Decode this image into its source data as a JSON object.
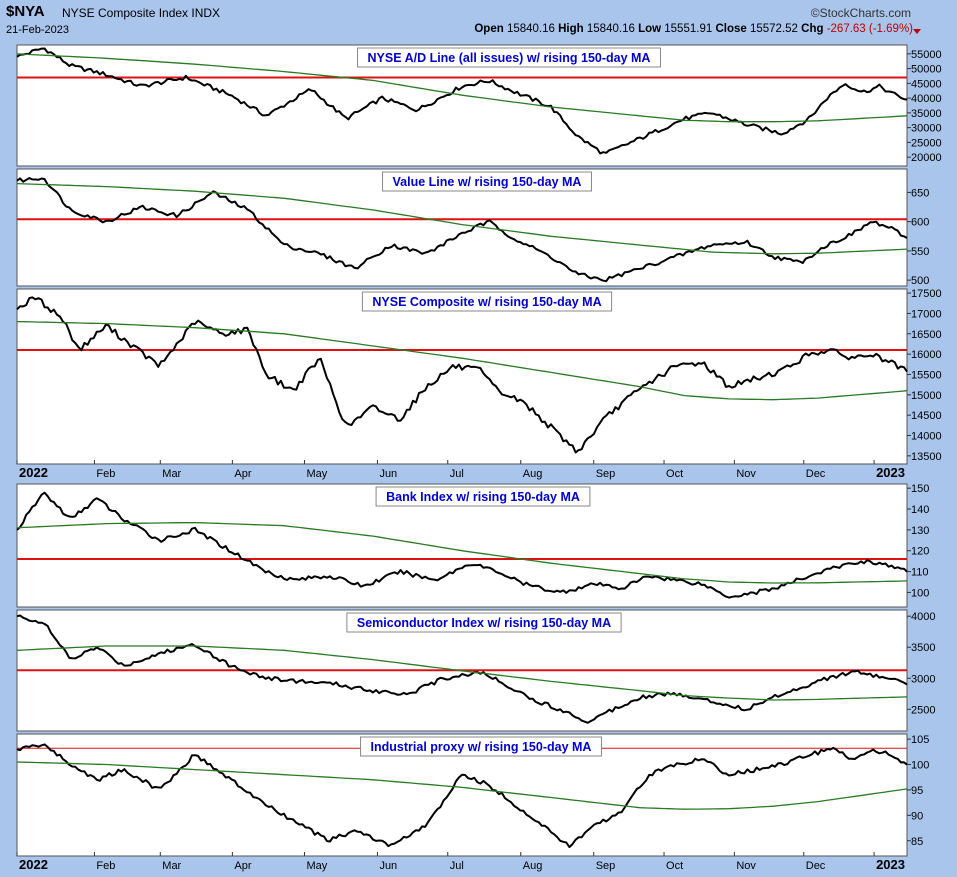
{
  "header": {
    "symbol": "$NYA",
    "name": "NYSE Composite Index INDX",
    "date": "21-Feb-2023",
    "brand": "StockCharts.com",
    "open_label": "Open",
    "open": "15840.16",
    "high_label": "High",
    "high": "15840.16",
    "low_label": "Low",
    "low": "15551.91",
    "close_label": "Close",
    "close": "15572.52",
    "chg_label": "Chg",
    "chg": "-267.63 (-1.69%)"
  },
  "colors": {
    "background": "#a9c5ec",
    "price": "#000000",
    "ma": "#2a7a24",
    "reference": "#e01010",
    "title": "#0000cc"
  },
  "chart_data": [
    {
      "type": "line",
      "title": "NYSE A/D Line (all issues) w/ rising 150-day MA",
      "ylim": [
        17000,
        58000
      ],
      "yticks": [
        20000,
        25000,
        30000,
        35000,
        40000,
        45000,
        50000,
        55000
      ],
      "ytick_labels": [
        "20000",
        "25000",
        "30000",
        "35000",
        "40000",
        "45000",
        "50000",
        "55000"
      ],
      "reference_line": 47000,
      "series": [
        {
          "role": "price",
          "x": [
            0,
            0.03,
            0.06,
            0.1,
            0.14,
            0.19,
            0.24,
            0.28,
            0.33,
            0.37,
            0.41,
            0.45,
            0.5,
            0.53,
            0.56,
            0.6,
            0.63,
            0.66,
            0.69,
            0.72,
            0.75,
            0.78,
            0.82,
            0.86,
            0.89,
            0.91,
            0.93,
            0.95,
            0.97,
            0.98,
            1
          ],
          "values": [
            54000,
            57000,
            51000,
            48000,
            44000,
            47000,
            41000,
            34000,
            43000,
            33000,
            40000,
            36000,
            44000,
            46000,
            42000,
            37000,
            27000,
            21000,
            25000,
            29000,
            33000,
            35000,
            31000,
            28000,
            33000,
            40000,
            45000,
            42000,
            44000,
            42000,
            39500
          ]
        },
        {
          "role": "ma",
          "x": [
            0,
            0.1,
            0.2,
            0.3,
            0.4,
            0.5,
            0.6,
            0.7,
            0.75,
            0.8,
            0.85,
            0.9,
            1
          ],
          "values": [
            55000,
            53500,
            51500,
            49000,
            46000,
            41000,
            37000,
            34000,
            32500,
            32000,
            32000,
            32300,
            34000
          ]
        }
      ]
    },
    {
      "type": "line",
      "title": "Value Line w/ rising 150-day MA",
      "ylim": [
        490,
        690
      ],
      "yticks": [
        500,
        550,
        600,
        650
      ],
      "ytick_labels": [
        "500",
        "550",
        "600",
        "650"
      ],
      "reference_line": 604,
      "series": [
        {
          "role": "price",
          "x": [
            0,
            0.03,
            0.06,
            0.1,
            0.14,
            0.18,
            0.22,
            0.26,
            0.3,
            0.34,
            0.38,
            0.42,
            0.46,
            0.5,
            0.53,
            0.56,
            0.6,
            0.63,
            0.66,
            0.7,
            0.74,
            0.78,
            0.82,
            0.85,
            0.88,
            0.91,
            0.94,
            0.96,
            0.98,
            1
          ],
          "values": [
            670,
            675,
            620,
            600,
            625,
            610,
            650,
            620,
            560,
            545,
            520,
            560,
            545,
            580,
            600,
            570,
            540,
            510,
            500,
            520,
            540,
            560,
            565,
            540,
            530,
            560,
            580,
            600,
            590,
            572
          ]
        },
        {
          "role": "ma",
          "x": [
            0,
            0.1,
            0.2,
            0.3,
            0.4,
            0.5,
            0.6,
            0.7,
            0.78,
            0.85,
            0.9,
            1
          ],
          "values": [
            665,
            660,
            652,
            640,
            620,
            595,
            575,
            560,
            548,
            545,
            546,
            553
          ]
        }
      ]
    },
    {
      "type": "line",
      "title": "NYSE Composite w/ rising 150-day MA",
      "ylim": [
        13300,
        17600
      ],
      "yticks": [
        13500,
        14000,
        14500,
        15000,
        15500,
        16000,
        16500,
        17000,
        17500
      ],
      "ytick_labels": [
        "13500",
        "14000",
        "14500",
        "15000",
        "15500",
        "16000",
        "16500",
        "17000",
        "17500"
      ],
      "reference_line": 16100,
      "series": [
        {
          "role": "price",
          "x": [
            0,
            0.02,
            0.05,
            0.07,
            0.1,
            0.13,
            0.16,
            0.2,
            0.23,
            0.26,
            0.28,
            0.31,
            0.34,
            0.37,
            0.4,
            0.43,
            0.46,
            0.49,
            0.52,
            0.54,
            0.57,
            0.6,
            0.63,
            0.66,
            0.68,
            0.71,
            0.74,
            0.77,
            0.8,
            0.83,
            0.86,
            0.89,
            0.91,
            0.94,
            0.96,
            0.98,
            1
          ],
          "values": [
            17100,
            17400,
            16900,
            16100,
            16700,
            16200,
            15700,
            16800,
            16500,
            16600,
            15500,
            15100,
            15900,
            14200,
            14700,
            14400,
            15200,
            15700,
            15600,
            15100,
            14800,
            14200,
            13600,
            14400,
            14800,
            15300,
            15700,
            15800,
            15200,
            15400,
            15600,
            16000,
            16100,
            15900,
            16000,
            15800,
            15570
          ]
        },
        {
          "role": "ma",
          "x": [
            0,
            0.1,
            0.2,
            0.3,
            0.4,
            0.5,
            0.6,
            0.7,
            0.75,
            0.8,
            0.85,
            0.9,
            1
          ],
          "values": [
            16800,
            16750,
            16650,
            16500,
            16200,
            15900,
            15550,
            15200,
            14980,
            14900,
            14880,
            14920,
            15100
          ]
        }
      ]
    },
    {
      "type": "line",
      "title": "Bank Index w/ rising 150-day MA",
      "ylim": [
        93,
        152
      ],
      "yticks": [
        100,
        110,
        120,
        130,
        140,
        150
      ],
      "ytick_labels": [
        "100",
        "110",
        "120",
        "130",
        "140",
        "150"
      ],
      "reference_line": 116,
      "series": [
        {
          "role": "price",
          "x": [
            0,
            0.03,
            0.06,
            0.09,
            0.12,
            0.16,
            0.2,
            0.24,
            0.28,
            0.31,
            0.35,
            0.39,
            0.43,
            0.47,
            0.51,
            0.54,
            0.57,
            0.61,
            0.65,
            0.68,
            0.71,
            0.74,
            0.77,
            0.8,
            0.83,
            0.86,
            0.89,
            0.92,
            0.95,
            0.97,
            1
          ],
          "values": [
            130,
            148,
            135,
            145,
            135,
            125,
            130,
            120,
            110,
            106,
            108,
            103,
            110,
            106,
            114,
            110,
            104,
            100,
            104,
            102,
            108,
            106,
            104,
            98,
            100,
            103,
            108,
            112,
            115,
            114,
            110
          ]
        },
        {
          "role": "ma",
          "x": [
            0,
            0.1,
            0.2,
            0.3,
            0.4,
            0.5,
            0.6,
            0.7,
            0.75,
            0.8,
            0.85,
            0.9,
            1
          ],
          "values": [
            131,
            133,
            133.5,
            132,
            127,
            120,
            114,
            109,
            106.5,
            105,
            104.5,
            104.6,
            105.5
          ]
        }
      ]
    },
    {
      "type": "line",
      "title": "Semiconductor Index w/ rising 150-day MA",
      "ylim": [
        2150,
        4100
      ],
      "yticks": [
        2500,
        3000,
        3500,
        4000
      ],
      "ytick_labels": [
        "2500",
        "3000",
        "3500",
        "4000"
      ],
      "reference_line": 3130,
      "series": [
        {
          "role": "price",
          "x": [
            0,
            0.03,
            0.06,
            0.09,
            0.12,
            0.16,
            0.2,
            0.24,
            0.28,
            0.32,
            0.36,
            0.4,
            0.44,
            0.48,
            0.52,
            0.55,
            0.58,
            0.61,
            0.64,
            0.67,
            0.7,
            0.73,
            0.76,
            0.79,
            0.82,
            0.85,
            0.88,
            0.91,
            0.94,
            0.96,
            0.98,
            1
          ],
          "values": [
            4000,
            3900,
            3300,
            3500,
            3200,
            3400,
            3550,
            3200,
            3000,
            2950,
            2900,
            2800,
            2750,
            3000,
            3100,
            2900,
            2650,
            2500,
            2300,
            2500,
            2700,
            2750,
            2700,
            2600,
            2500,
            2700,
            2850,
            3000,
            3100,
            3050,
            3000,
            2900
          ]
        },
        {
          "role": "ma",
          "x": [
            0,
            0.1,
            0.2,
            0.3,
            0.4,
            0.5,
            0.6,
            0.7,
            0.75,
            0.8,
            0.85,
            0.9,
            1
          ],
          "values": [
            3450,
            3520,
            3520,
            3450,
            3300,
            3120,
            2950,
            2800,
            2720,
            2680,
            2650,
            2660,
            2700
          ]
        }
      ]
    },
    {
      "type": "line",
      "title": "Industrial proxy w/ rising 150-day MA",
      "ylim": [
        82,
        106
      ],
      "yticks": [
        85,
        90,
        95,
        100,
        105
      ],
      "ytick_labels": [
        "85",
        "90",
        "95",
        "100",
        "105"
      ],
      "reference_line": 103.2,
      "series": [
        {
          "role": "price",
          "x": [
            0,
            0.03,
            0.06,
            0.09,
            0.12,
            0.16,
            0.2,
            0.24,
            0.28,
            0.32,
            0.35,
            0.38,
            0.42,
            0.46,
            0.5,
            0.53,
            0.56,
            0.59,
            0.62,
            0.65,
            0.68,
            0.71,
            0.74,
            0.77,
            0.8,
            0.83,
            0.86,
            0.89,
            0.92,
            0.94,
            0.96,
            0.98,
            1
          ],
          "values": [
            103,
            104,
            100,
            97,
            99,
            95,
            102,
            97,
            92,
            88,
            85,
            87,
            84,
            88,
            98,
            96,
            92,
            88,
            84,
            88,
            91,
            98,
            100,
            101,
            98,
            99,
            100,
            102,
            103,
            101,
            103,
            102,
            100
          ]
        },
        {
          "role": "ma",
          "x": [
            0,
            0.1,
            0.2,
            0.3,
            0.4,
            0.5,
            0.6,
            0.7,
            0.75,
            0.8,
            0.85,
            0.9,
            1
          ],
          "values": [
            100.5,
            100,
            99,
            98,
            97,
            95.5,
            93.5,
            91.5,
            91.2,
            91.3,
            91.8,
            92.7,
            95.2
          ]
        }
      ]
    }
  ],
  "x_axis": {
    "labels": [
      "2022",
      "Feb",
      "Mar",
      "Apr",
      "May",
      "Jun",
      "Jul",
      "Aug",
      "Sep",
      "Oct",
      "Nov",
      "Dec",
      "2023",
      "Feb"
    ],
    "positions": [
      0.0,
      0.087,
      0.161,
      0.242,
      0.323,
      0.405,
      0.484,
      0.566,
      0.648,
      0.727,
      0.806,
      0.884,
      0.963,
      1.041
    ],
    "bold": [
      true,
      false,
      false,
      false,
      false,
      false,
      false,
      false,
      false,
      false,
      false,
      false,
      true,
      false
    ]
  }
}
